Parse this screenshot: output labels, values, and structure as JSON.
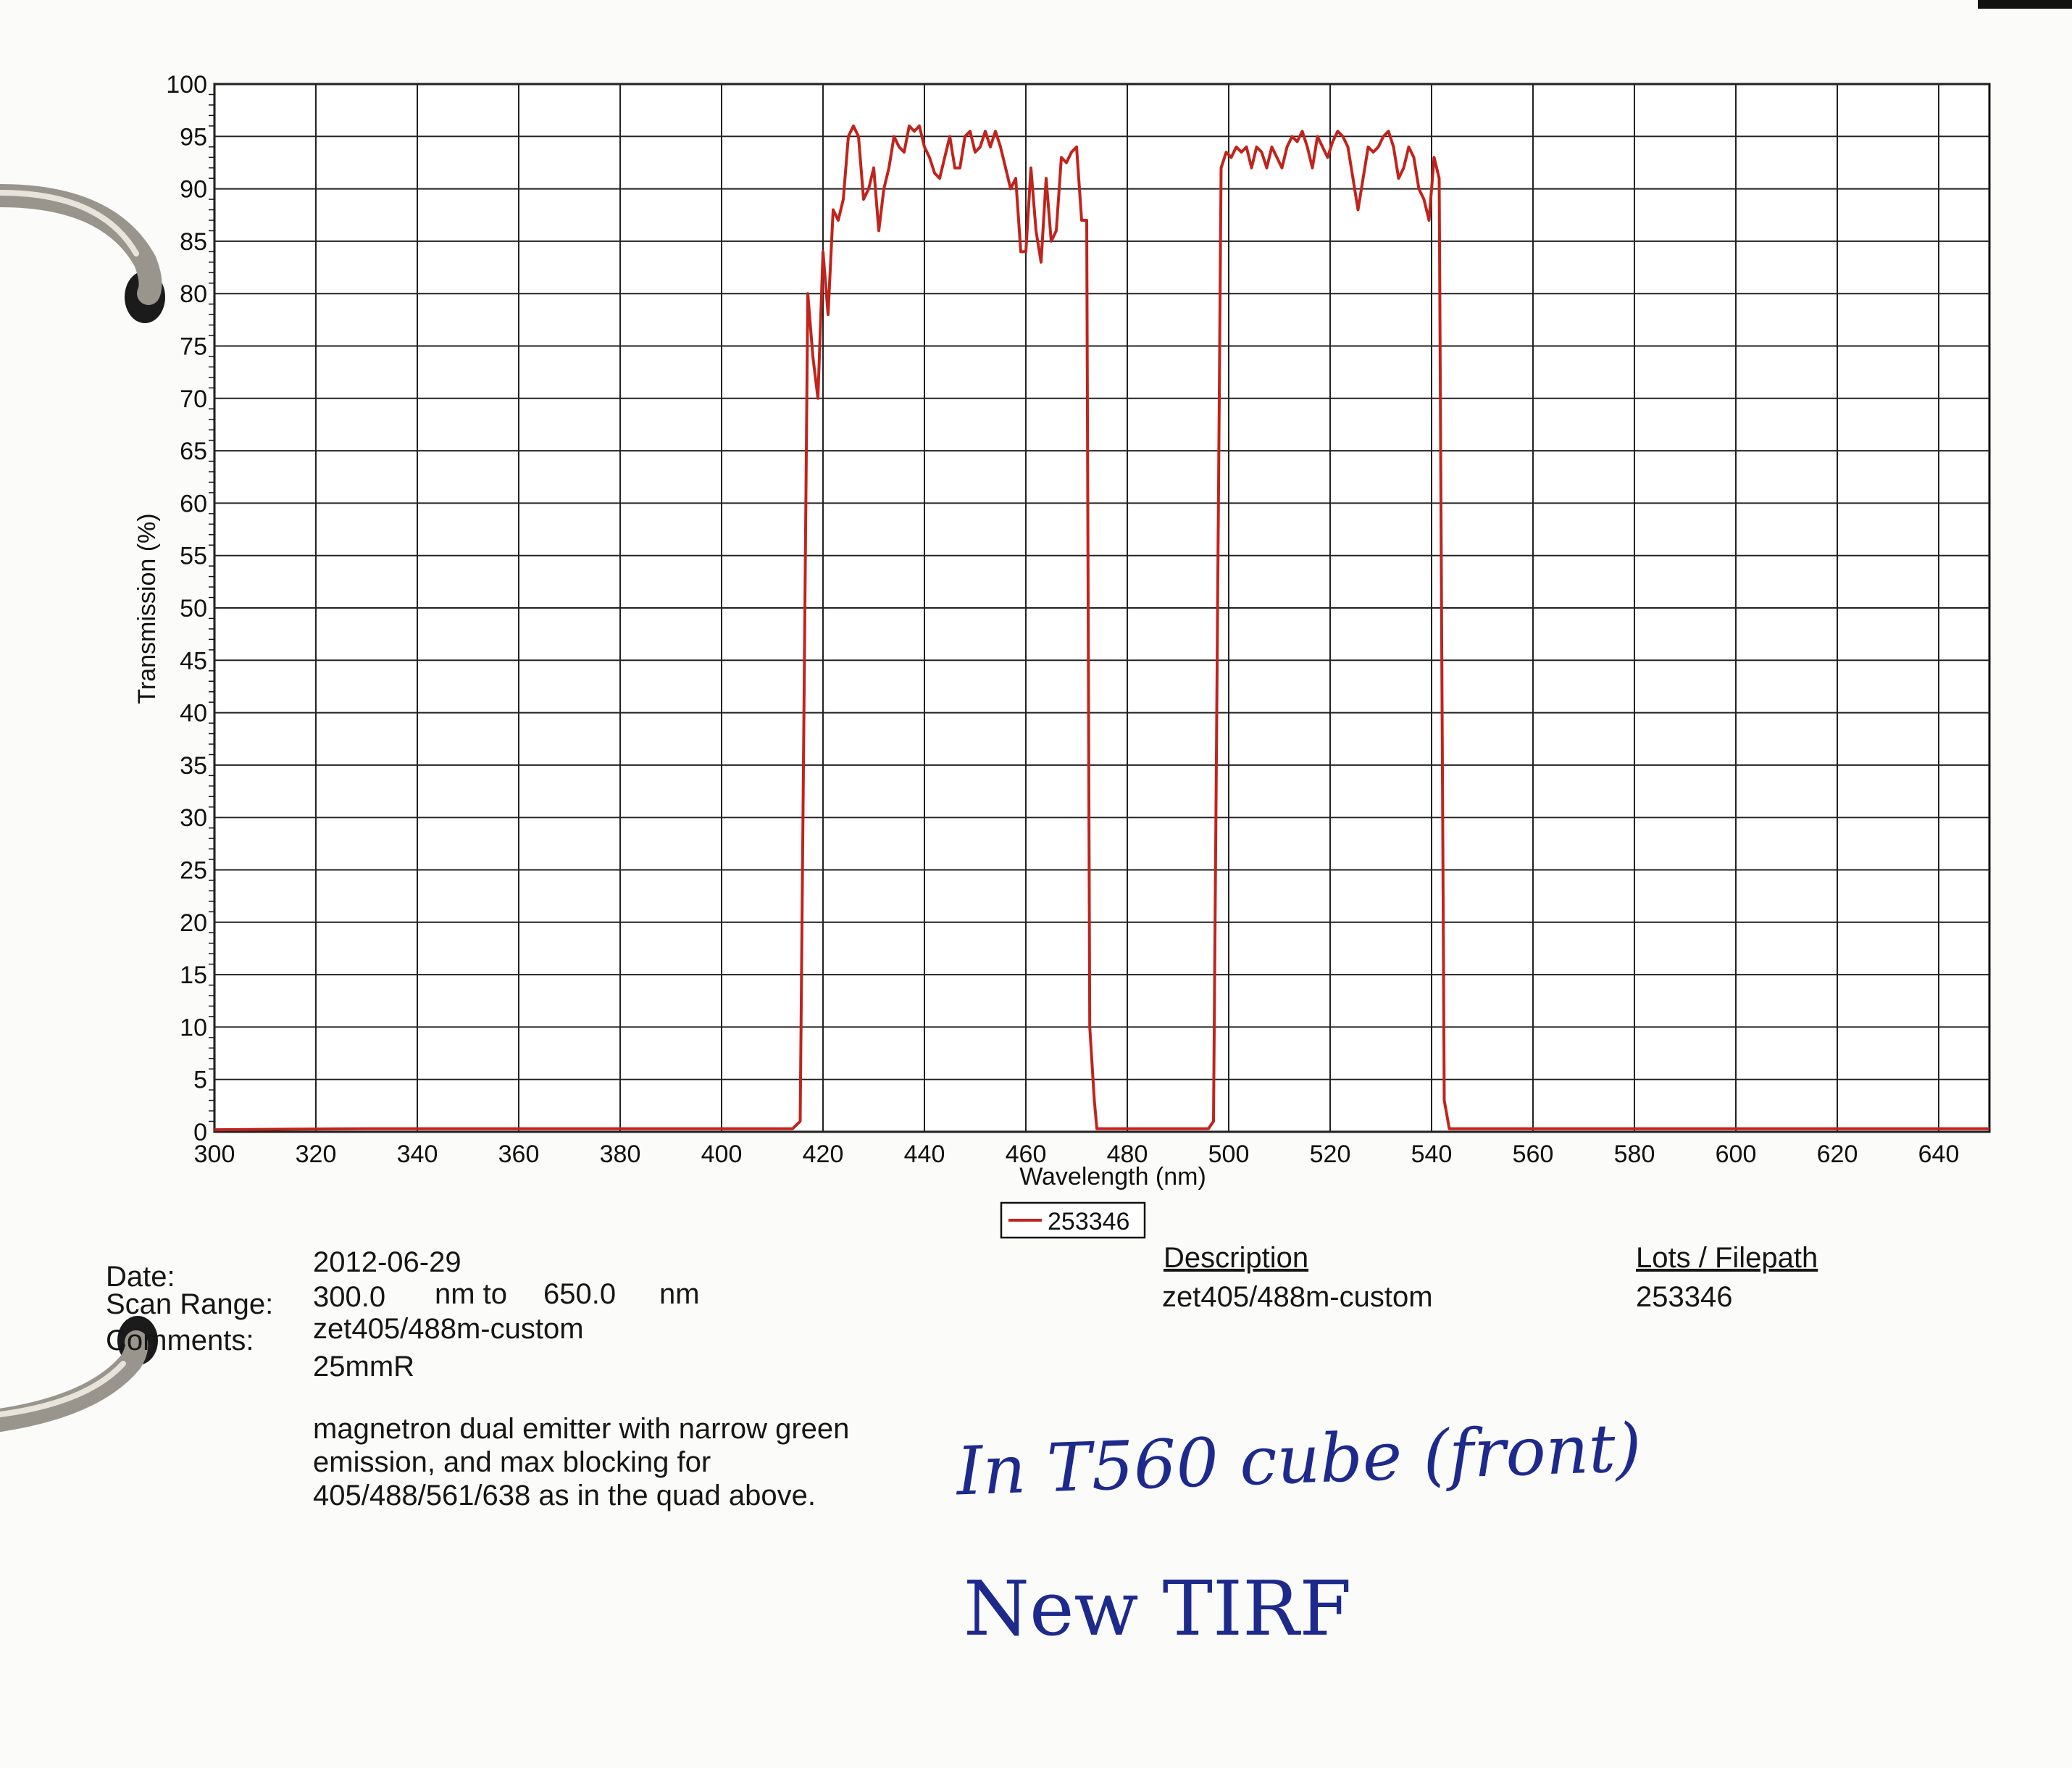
{
  "chart_data": {
    "type": "line",
    "xlabel": "Wavelength (nm)",
    "ylabel": "Transmission (%)",
    "xlim": [
      300,
      650
    ],
    "ylim": [
      0,
      100
    ],
    "x_ticks": [
      300,
      320,
      340,
      360,
      380,
      400,
      420,
      440,
      460,
      480,
      500,
      520,
      540,
      560,
      580,
      600,
      620,
      640
    ],
    "y_ticks": [
      0,
      5,
      10,
      15,
      20,
      25,
      30,
      35,
      40,
      45,
      50,
      55,
      60,
      65,
      70,
      75,
      80,
      85,
      90,
      95,
      100
    ],
    "grid": true,
    "legend_position": "below",
    "series": [
      {
        "name": "253346",
        "color": "#c0241c",
        "points": [
          [
            300,
            0.2
          ],
          [
            330,
            0.3
          ],
          [
            360,
            0.3
          ],
          [
            400,
            0.3
          ],
          [
            414,
            0.3
          ],
          [
            415.5,
            1
          ],
          [
            417,
            80
          ],
          [
            418,
            74
          ],
          [
            419,
            70
          ],
          [
            420,
            84
          ],
          [
            421,
            78
          ],
          [
            422,
            88
          ],
          [
            423,
            87
          ],
          [
            424,
            89
          ],
          [
            425,
            95
          ],
          [
            426,
            96
          ],
          [
            427,
            95
          ],
          [
            428,
            89
          ],
          [
            429,
            90
          ],
          [
            430,
            92
          ],
          [
            431,
            86
          ],
          [
            432,
            90
          ],
          [
            433,
            92
          ],
          [
            434,
            95
          ],
          [
            435,
            94
          ],
          [
            436,
            93.5
          ],
          [
            437,
            96
          ],
          [
            438,
            95.5
          ],
          [
            439,
            96
          ],
          [
            440,
            94
          ],
          [
            441,
            93
          ],
          [
            442,
            91.5
          ],
          [
            443,
            91
          ],
          [
            444,
            93
          ],
          [
            445,
            95
          ],
          [
            446,
            92
          ],
          [
            447,
            92
          ],
          [
            448,
            95
          ],
          [
            449,
            95.5
          ],
          [
            450,
            93.5
          ],
          [
            451,
            94
          ],
          [
            452,
            95.5
          ],
          [
            453,
            94
          ],
          [
            454,
            95.5
          ],
          [
            455,
            94
          ],
          [
            456,
            92
          ],
          [
            457,
            90
          ],
          [
            458,
            91
          ],
          [
            459,
            84
          ],
          [
            460,
            84
          ],
          [
            461,
            92
          ],
          [
            462,
            86
          ],
          [
            463,
            83
          ],
          [
            464,
            91
          ],
          [
            465,
            85
          ],
          [
            466,
            86
          ],
          [
            467,
            93
          ],
          [
            468,
            92.5
          ],
          [
            469,
            93.5
          ],
          [
            470,
            94
          ],
          [
            471,
            87
          ],
          [
            472,
            87
          ],
          [
            472.6,
            10
          ],
          [
            473.5,
            3
          ],
          [
            474,
            0.3
          ],
          [
            490,
            0.3
          ],
          [
            496,
            0.3
          ],
          [
            497,
            1
          ],
          [
            498.5,
            92
          ],
          [
            499.5,
            93.5
          ],
          [
            500.5,
            93
          ],
          [
            501.5,
            94
          ],
          [
            502.5,
            93.5
          ],
          [
            503.5,
            94
          ],
          [
            504.5,
            92
          ],
          [
            505.5,
            94
          ],
          [
            506.5,
            93.5
          ],
          [
            507.5,
            92
          ],
          [
            508.5,
            94
          ],
          [
            509.5,
            93
          ],
          [
            510.5,
            92
          ],
          [
            511.5,
            94
          ],
          [
            512.5,
            95
          ],
          [
            513.5,
            94.5
          ],
          [
            514.5,
            95.5
          ],
          [
            515.5,
            94
          ],
          [
            516.5,
            92
          ],
          [
            517.5,
            95
          ],
          [
            518.5,
            94
          ],
          [
            519.5,
            93
          ],
          [
            520.5,
            94.5
          ],
          [
            521.5,
            95.5
          ],
          [
            522.5,
            95
          ],
          [
            523.5,
            94
          ],
          [
            524.5,
            91
          ],
          [
            525.5,
            88
          ],
          [
            526.5,
            91
          ],
          [
            527.5,
            94
          ],
          [
            528.5,
            93.5
          ],
          [
            529.5,
            94
          ],
          [
            530.5,
            95
          ],
          [
            531.5,
            95.5
          ],
          [
            532.5,
            94
          ],
          [
            533.5,
            91
          ],
          [
            534.5,
            92
          ],
          [
            535.5,
            94
          ],
          [
            536.5,
            93
          ],
          [
            537.5,
            90
          ],
          [
            538.5,
            89
          ],
          [
            539.5,
            87
          ],
          [
            540.5,
            93
          ],
          [
            541.5,
            91
          ],
          [
            542.5,
            3
          ],
          [
            543.5,
            0.3
          ],
          [
            570,
            0.3
          ],
          [
            610,
            0.3
          ],
          [
            650,
            0.3
          ]
        ]
      }
    ]
  },
  "info": {
    "date_label": "Date:",
    "date_value": "2012-06-29",
    "scan_range_label": "Scan Range:",
    "scan_range_start": "300.0",
    "scan_range_mid": "nm to",
    "scan_range_end": "650.0",
    "scan_range_unit": "nm",
    "comments_label": "Comments:",
    "comments_line1": "zet405/488m-custom",
    "comments_line2": "25mmR",
    "comments_note1": "magnetron dual emitter with narrow green",
    "comments_note2": "emission,  and max blocking for",
    "comments_note3": "405/488/561/638 as in the quad above.",
    "description_header": "Description",
    "description_value": "zet405/488m-custom",
    "lots_header": "Lots / Filepath",
    "lots_value": "253346"
  },
  "handwriting": {
    "line1": "In T560 cube (front)",
    "line2": "New TIRF",
    "ink_color": "#1d2a8c"
  }
}
